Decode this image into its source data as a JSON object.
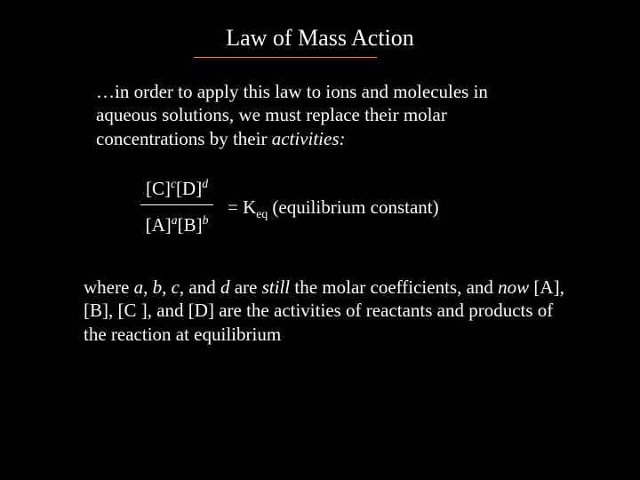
{
  "background_color": "#000000",
  "text_color": "#ffffff",
  "accent_color": "#e88b3a",
  "font_family": "Georgia, 'Times New Roman', Times, serif",
  "title": {
    "text": "Law of Mass Action",
    "fontsize": 26,
    "color": "#ffffff",
    "underline_color": "#e88b3a"
  },
  "para1": {
    "lead": "…in order to apply this law to ions and molecules in aqueous solutions, we must replace their molar concentrations by their ",
    "italic_word": "activities:",
    "fontsize": 21
  },
  "equation": {
    "num_c_base": "[C]",
    "num_c_exp": "c",
    "num_d_base": "[D]",
    "num_d_exp": "d",
    "den_a_base": "[A]",
    "den_a_exp": "a",
    "den_b_base": "[B]",
    "den_b_exp": "b",
    "eq_sign": "= K",
    "eq_sub": "eq",
    "rhs_tail": " (equilibrium constant)",
    "frac_line_color": "#ffffff",
    "fontsize": 21
  },
  "para2": {
    "p_where": "where ",
    "a": "a",
    "c1": ", ",
    "b": "b",
    "c2": ", ",
    "c": "c",
    "c3": ", and ",
    "d": "d",
    "are": " are ",
    "still": "still",
    "mid": " the molar coefficients, and ",
    "now": "now",
    "tail": " [A], [B], [C ], and [D] are the activities of reactants and products of the reaction at equilibrium",
    "fontsize": 21
  }
}
